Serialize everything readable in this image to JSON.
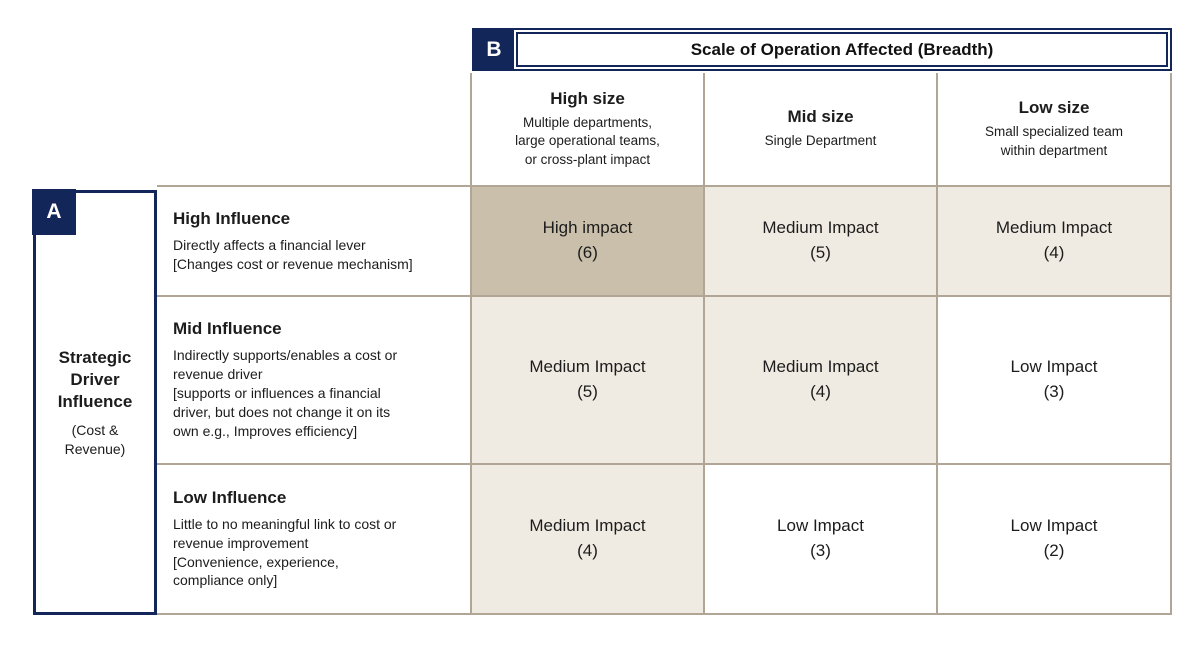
{
  "colors": {
    "navy": "#13265a",
    "border_tan": "#b1a695",
    "cell_high": "#c9bfaa",
    "cell_medium": "#f0ebe2",
    "cell_low": "#ffffff",
    "text": "#1c1c1c"
  },
  "axis_b": {
    "label": "B",
    "title": "Scale of Operation Affected (Breadth)",
    "columns": [
      {
        "title": "High size",
        "subtitle": "Multiple departments,\nlarge operational teams,\nor cross-plant impact"
      },
      {
        "title": "Mid size",
        "subtitle": "Single Department"
      },
      {
        "title": "Low size",
        "subtitle": "Small specialized team\nwithin department"
      }
    ]
  },
  "axis_a": {
    "label": "A",
    "title": "Strategic\nDriver\nInfluence",
    "subtitle": "(Cost &\nRevenue)"
  },
  "rows": [
    {
      "title": "High Influence",
      "description": "Directly affects a financial lever\n[Changes cost or revenue mechanism]",
      "cells": [
        {
          "label": "High impact",
          "score": "(6)",
          "level": "high"
        },
        {
          "label": "Medium Impact",
          "score": "(5)",
          "level": "medium"
        },
        {
          "label": "Medium Impact",
          "score": "(4)",
          "level": "medium"
        }
      ]
    },
    {
      "title": "Mid Influence",
      "description": "Indirectly supports/enables a cost or\nrevenue driver\n[supports or influences a financial\ndriver, but does not change it on its\nown e.g., Improves efficiency]",
      "cells": [
        {
          "label": "Medium Impact",
          "score": "(5)",
          "level": "medium"
        },
        {
          "label": "Medium Impact",
          "score": "(4)",
          "level": "medium"
        },
        {
          "label": "Low Impact",
          "score": "(3)",
          "level": "low"
        }
      ]
    },
    {
      "title": "Low Influence",
      "description": "Little to no meaningful link to cost or\nrevenue improvement\n[Convenience, experience,\ncompliance only]",
      "cells": [
        {
          "label": "Medium Impact",
          "score": "(4)",
          "level": "medium"
        },
        {
          "label": "Low Impact",
          "score": "(3)",
          "level": "low"
        },
        {
          "label": "Low Impact",
          "score": "(2)",
          "level": "low"
        }
      ]
    }
  ]
}
